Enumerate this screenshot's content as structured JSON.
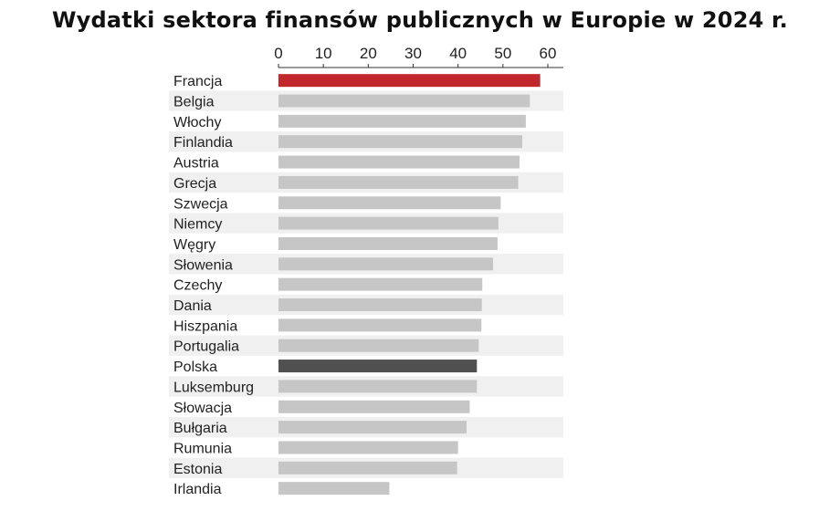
{
  "chart_data": {
    "type": "bar",
    "orientation": "horizontal",
    "title": "Wydatki sektora finansów publicznych w Europie w 2024 r.",
    "xlabel": "",
    "ylabel": "",
    "xlim": [
      0,
      60
    ],
    "x_ticks": [
      "0",
      "10",
      "20",
      "30",
      "40",
      "50",
      "60"
    ],
    "grid": false,
    "legend": "none",
    "categories": [
      "Francja",
      "Belgia",
      "Włochy",
      "Finlandia",
      "Austria",
      "Grecja",
      "Szwecja",
      "Niemcy",
      "Węgry",
      "Słowenia",
      "Czechy",
      "Dania",
      "Hiszpania",
      "Portugalia",
      "Polska",
      "Luksemburg",
      "Słowacja",
      "Bułgaria",
      "Rumunia",
      "Estonia",
      "Irlandia"
    ],
    "values": [
      58.3,
      56.0,
      55.1,
      54.3,
      53.7,
      53.4,
      49.5,
      49.0,
      48.8,
      47.8,
      45.4,
      45.3,
      45.2,
      44.6,
      44.2,
      44.2,
      42.6,
      41.9,
      40.0,
      39.8,
      24.7
    ],
    "colors": {
      "default": "#c6c6c6",
      "highlight_france": "#c1272d",
      "highlight_poland": "#505050",
      "band": "#f0f0f0"
    },
    "bar_colors": [
      "#c1272d",
      "#c6c6c6",
      "#c6c6c6",
      "#c6c6c6",
      "#c6c6c6",
      "#c6c6c6",
      "#c6c6c6",
      "#c6c6c6",
      "#c6c6c6",
      "#c6c6c6",
      "#c6c6c6",
      "#c6c6c6",
      "#c6c6c6",
      "#c6c6c6",
      "#505050",
      "#c6c6c6",
      "#c6c6c6",
      "#c6c6c6",
      "#c6c6c6",
      "#c6c6c6",
      "#c6c6c6"
    ]
  }
}
